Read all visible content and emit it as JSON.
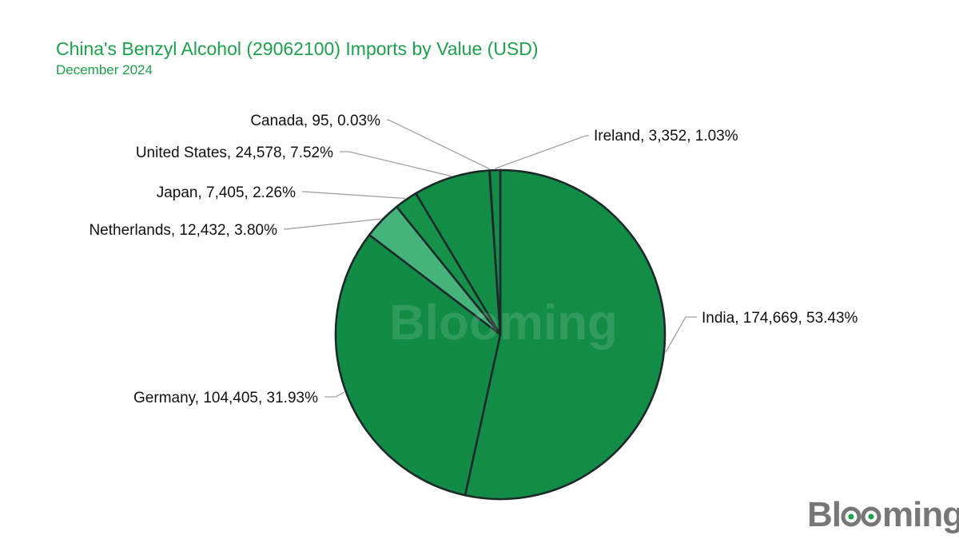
{
  "chart_data": {
    "type": "pie",
    "title": "China's Benzyl Alcohol (29062100) Imports by Value (USD)",
    "subtitle": "December 2024",
    "slices": [
      {
        "name": "India",
        "value": 174669,
        "percent": 53.43,
        "label": "India, 174,669, 53.43%",
        "color": "#138c47"
      },
      {
        "name": "Germany",
        "value": 104405,
        "percent": 31.93,
        "label": "Germany, 104,405, 31.93%",
        "color": "#118b45"
      },
      {
        "name": "Netherlands",
        "value": 12432,
        "percent": 3.8,
        "label": "Netherlands, 12,432, 3.80%",
        "color": "#45b37a"
      },
      {
        "name": "Japan",
        "value": 7405,
        "percent": 2.26,
        "label": "Japan, 7,405, 2.26%",
        "color": "#15914a"
      },
      {
        "name": "United States",
        "value": 24578,
        "percent": 7.52,
        "label": "United States, 24,578, 7.52%",
        "color": "#138c47"
      },
      {
        "name": "Canada",
        "value": 95,
        "percent": 0.03,
        "label": "Canada, 95, 0.03%",
        "color": "#138c47"
      },
      {
        "name": "Ireland",
        "value": 3352,
        "percent": 1.03,
        "label": "Ireland, 3,352, 1.03%",
        "color": "#138c47"
      }
    ],
    "legend": "none",
    "watermark": "Blooming"
  },
  "brand": {
    "logo_text_left": "Bl",
    "logo_text_right": "ming"
  }
}
